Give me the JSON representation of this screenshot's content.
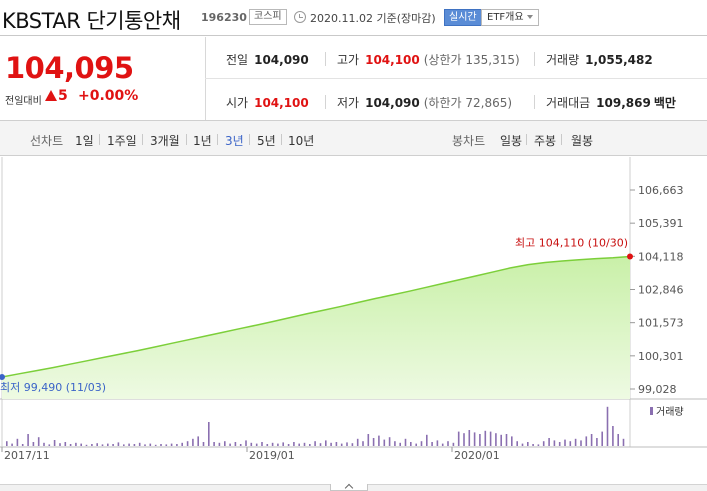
{
  "header": {
    "title": "KBSTAR 단기통안채",
    "code": "196230",
    "market": "코스피",
    "as_of": "2020.11.02 기준(장마감)",
    "realtime": "실시간",
    "etf_menu": "ETF개요"
  },
  "quote": {
    "price": "104,095",
    "change_label": "전일대비",
    "change": "5",
    "change_pct": "+0.00%"
  },
  "stats": {
    "prev_close": {
      "label": "전일",
      "value": "104,090"
    },
    "high": {
      "label": "고가",
      "value": "104,100",
      "note": "(상한가 135,315)"
    },
    "volume": {
      "label": "거래량",
      "value": "1,055,482"
    },
    "open": {
      "label": "시가",
      "value": "104,100"
    },
    "low": {
      "label": "저가",
      "value": "104,090",
      "note": "(하한가 72,865)"
    },
    "amount": {
      "label": "거래대금",
      "value": "109,869",
      "unit": "백만"
    }
  },
  "periods": {
    "line_label": "선차트",
    "line_items": [
      "1일",
      "1주일",
      "3개월",
      "1년",
      "3년",
      "5년",
      "10년"
    ],
    "selected": "3년",
    "candle_label": "봉차트",
    "candle_items": [
      "일봉",
      "주봉",
      "월봉"
    ]
  },
  "colors": {
    "red": "#e01212",
    "line": "#7ccf3a",
    "fill_top": "#c9f0a8",
    "fill_bottom": "#eefae3",
    "volume": "#8a6fb0",
    "selected": "#3b64c8"
  },
  "chart_data": {
    "type": "area",
    "y_ticks": [
      "106,663",
      "105,391",
      "104,118",
      "102,846",
      "101,573",
      "100,301",
      "99,028"
    ],
    "ylim": [
      99028,
      106663
    ],
    "x_ticks": [
      "2017/11",
      "2019/01",
      "2020/01"
    ],
    "max_label": "최고 104,110 (10/30)",
    "min_label": "최저 99,490 (11/03)",
    "volume_legend": "거래량",
    "series": [
      {
        "values": [
          99490,
          99610,
          99730,
          99850,
          99980,
          100110,
          100240,
          100370,
          100500,
          100640,
          100780,
          100920,
          101060,
          101200,
          101340,
          101480,
          101620,
          101770,
          101920,
          102060,
          102200,
          102350,
          102500,
          102640,
          102780,
          102930,
          103080,
          103230,
          103380,
          103530,
          103680,
          103800,
          103880,
          103940,
          103990,
          104030,
          104060,
          104110
        ]
      }
    ],
    "volume": [
      0.12,
      0.06,
      0.18,
      0.05,
      0.3,
      0.1,
      0.22,
      0.08,
      0.04,
      0.15,
      0.07,
      0.1,
      0.05,
      0.08,
      0.06,
      0.03,
      0.05,
      0.07,
      0.04,
      0.06,
      0.05,
      0.09,
      0.04,
      0.06,
      0.05,
      0.08,
      0.04,
      0.06,
      0.03,
      0.05,
      0.04,
      0.06,
      0.05,
      0.08,
      0.12,
      0.18,
      0.24,
      0.1,
      0.6,
      0.1,
      0.08,
      0.12,
      0.06,
      0.1,
      0.05,
      0.14,
      0.08,
      0.06,
      0.1,
      0.05,
      0.08,
      0.06,
      0.09,
      0.05,
      0.1,
      0.06,
      0.08,
      0.05,
      0.12,
      0.07,
      0.14,
      0.08,
      0.1,
      0.06,
      0.09,
      0.07,
      0.18,
      0.12,
      0.3,
      0.2,
      0.26,
      0.16,
      0.22,
      0.12,
      0.08,
      0.18,
      0.1,
      0.06,
      0.12,
      0.28,
      0.1,
      0.14,
      0.06,
      0.12,
      0.08,
      0.36,
      0.32,
      0.4,
      0.34,
      0.3,
      0.38,
      0.36,
      0.32,
      0.28,
      0.3,
      0.24,
      0.12,
      0.06,
      0.1,
      0.05,
      0.04,
      0.12,
      0.2,
      0.14,
      0.1,
      0.16,
      0.12,
      0.18,
      0.14,
      0.24,
      0.3,
      0.2,
      0.36,
      0.98,
      0.5,
      0.3,
      0.18
    ]
  }
}
